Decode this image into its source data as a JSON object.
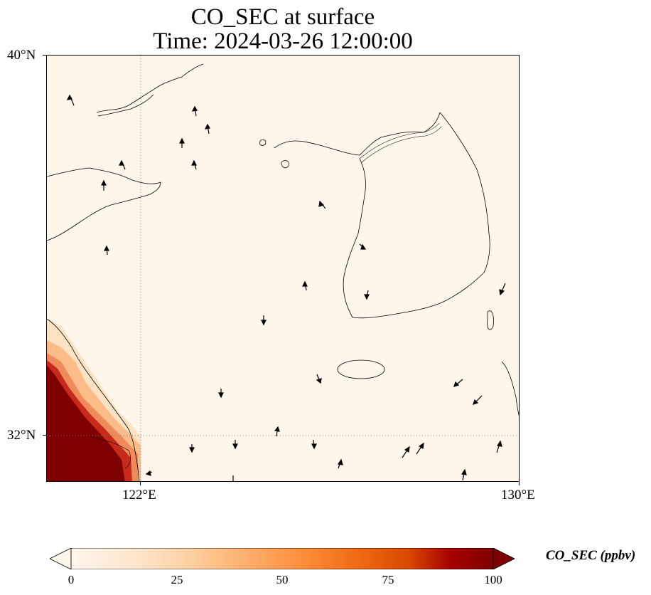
{
  "title": {
    "line1": "CO_SEC at surface",
    "line2": "Time: 2024-03-26 12:00:00"
  },
  "axes": {
    "lat_labels": [
      {
        "value": 40,
        "text": "40°N"
      },
      {
        "value": 32,
        "text": "32°N"
      }
    ],
    "lon_labels": [
      {
        "value": 122,
        "text": "122°E"
      },
      {
        "value": 130,
        "text": "130°E"
      }
    ],
    "extent": {
      "lon_min": 120,
      "lon_max": 130,
      "lat_min": 31,
      "lat_max": 40
    }
  },
  "colorbar": {
    "label": "CO_SEC (ppbv)",
    "ticks": [
      "0",
      "25",
      "50",
      "75",
      "100"
    ],
    "colormap": [
      "#fff5eb",
      "#fee6ce",
      "#fdd0a2",
      "#fdae6b",
      "#fd8d3c",
      "#f16913",
      "#d94801",
      "#a60000",
      "#7f0000"
    ],
    "extend": "both"
  },
  "map_colors": {
    "background": "#fef6ea",
    "high": "#7f0000",
    "coast": "#000000",
    "gridline": "#777777"
  },
  "chart_data": {
    "type": "heatmap",
    "variable": "CO_SEC",
    "units": "ppbv",
    "level": "surface",
    "time": "2024-03-26 12:00:00",
    "value_range": [
      0,
      100
    ],
    "xlim": [
      120,
      130
    ],
    "ylim": [
      31,
      40
    ],
    "high_region": {
      "lon_range": [
        120,
        122
      ],
      "lat_range": [
        31,
        33
      ],
      "value": 100
    },
    "background_value": 3
  }
}
